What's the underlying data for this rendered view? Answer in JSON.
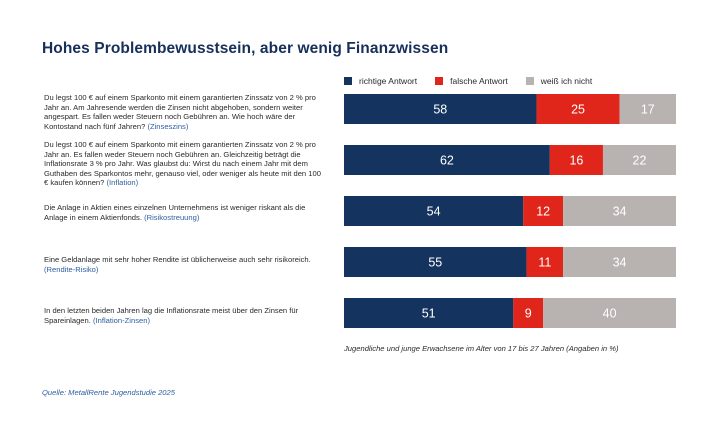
{
  "title": "Hohes Problembewusstsein, aber wenig Finanzwissen",
  "colors": {
    "richtig": "#14335e",
    "falsch": "#e0261b",
    "weiss_nicht": "#b8b3b1",
    "tag": "#2d5da0"
  },
  "questions": [
    {
      "text": "Du legst 100 € auf einem Sparkonto mit einem garantierten Zinssatz von 2 % pro Jahr an. Am Jahresende werden die Zinsen nicht abgehoben, sondern weiter angespart. Es fallen weder Steuern noch Gebühren an. Wie hoch wäre der Kontostand nach fünf Jahren?",
      "tag": "(Zinseszins)"
    },
    {
      "text": "Du legst 100 € auf einem Sparkonto mit einem garantierten Zinssatz von 2 % pro Jahr an. Es fallen weder Steuern noch Gebühren an. Gleichzeitig beträgt die Inflationsrate 3 % pro Jahr. Was glaubst du: Wirst du nach einem Jahr mit dem Guthaben des Sparkontos mehr, genauso viel, oder weniger als heute mit den 100 € kaufen können?",
      "tag": "(Inflation)"
    },
    {
      "text": "Die Anlage in Aktien eines einzelnen Unternehmens ist weniger riskant als die Anlage in einem Aktienfonds.",
      "tag": "(Risikostreuung)"
    },
    {
      "text": "Eine Geldanlage mit sehr hoher Rendite ist üblicherweise auch sehr risikoreich.",
      "tag": "(Rendite-Risiko)"
    },
    {
      "text": "In den letzten beiden Jahren lag die Inflationsrate meist über den Zinsen für Spareinlagen.",
      "tag": "(Inflation-Zinsen)"
    }
  ],
  "chart_data": {
    "type": "bar",
    "orientation": "horizontal",
    "stacked": true,
    "categories": [
      "Zinseszins",
      "Inflation",
      "Risikostreuung",
      "Rendite-Risiko",
      "Inflation-Zinsen"
    ],
    "series": [
      {
        "name": "richtige Antwort",
        "color": "#14335e",
        "values": [
          58,
          62,
          54,
          55,
          51
        ]
      },
      {
        "name": "falsche Antwort",
        "color": "#e0261b",
        "values": [
          25,
          16,
          12,
          11,
          9
        ]
      },
      {
        "name": "weiß ich nicht",
        "color": "#b8b3b1",
        "values": [
          17,
          22,
          34,
          34,
          40
        ]
      }
    ],
    "xlim": [
      0,
      100
    ],
    "legend": "top"
  },
  "note": "Jugendliche und junge Erwachsene im Alter von 17 bis 27 Jahren (Angaben in %)",
  "source": "Quelle: MetallRente Jugendstudie 2025"
}
